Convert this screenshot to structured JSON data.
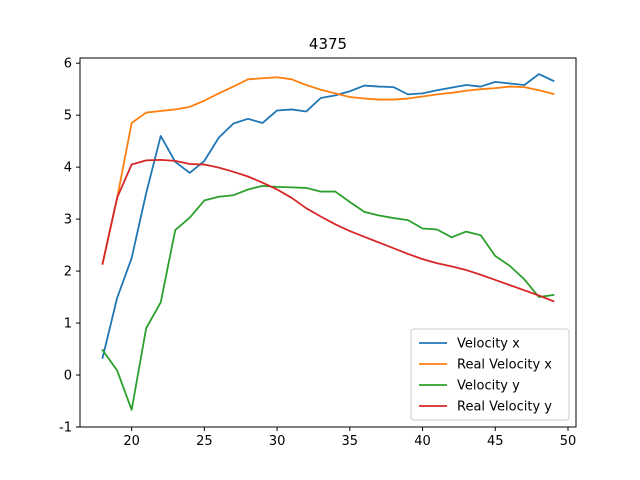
{
  "chart_data": {
    "type": "line",
    "title": "4375",
    "xlabel": "",
    "ylabel": "",
    "xlim": [
      16.45,
      50.55
    ],
    "ylim": [
      -1,
      6.1
    ],
    "xticks": [
      20,
      25,
      30,
      35,
      40,
      45,
      50
    ],
    "yticks": [
      -1,
      0,
      1,
      2,
      3,
      4,
      5,
      6
    ],
    "grid": false,
    "legend_position": "lower-right",
    "series": [
      {
        "name": "Velocity x",
        "color": "#1f77b4",
        "x": [
          18,
          19,
          20,
          21,
          22,
          23,
          24,
          25,
          26,
          27,
          28,
          29,
          30,
          31,
          32,
          33,
          34,
          35,
          36,
          37,
          38,
          39,
          40,
          41,
          42,
          43,
          44,
          45,
          46,
          47,
          48,
          49
        ],
        "y": [
          0.33,
          1.48,
          2.25,
          3.5,
          4.6,
          4.1,
          3.89,
          4.12,
          4.57,
          4.84,
          4.93,
          4.85,
          5.09,
          5.11,
          5.07,
          5.33,
          5.38,
          5.46,
          5.57,
          5.55,
          5.54,
          5.4,
          5.42,
          5.48,
          5.53,
          5.58,
          5.55,
          5.64,
          5.61,
          5.58,
          5.79,
          5.66
        ]
      },
      {
        "name": "Real Velocity x",
        "color": "#ff7f0e",
        "x": [
          18,
          19,
          20,
          21,
          22,
          23,
          24,
          25,
          26,
          27,
          28,
          29,
          30,
          31,
          32,
          33,
          34,
          35,
          36,
          37,
          38,
          39,
          40,
          41,
          42,
          43,
          44,
          45,
          46,
          47,
          48,
          49
        ],
        "y": [
          2.14,
          3.4,
          4.85,
          5.05,
          5.08,
          5.11,
          5.16,
          5.28,
          5.42,
          5.55,
          5.69,
          5.71,
          5.73,
          5.69,
          5.58,
          5.49,
          5.42,
          5.35,
          5.32,
          5.3,
          5.3,
          5.32,
          5.36,
          5.4,
          5.43,
          5.47,
          5.5,
          5.52,
          5.55,
          5.54,
          5.48,
          5.41
        ]
      },
      {
        "name": "Velocity y",
        "color": "#2ca02c",
        "x": [
          18,
          19,
          20,
          21,
          22,
          23,
          24,
          25,
          26,
          27,
          28,
          29,
          30,
          31,
          32,
          33,
          34,
          35,
          36,
          37,
          38,
          39,
          40,
          41,
          42,
          43,
          44,
          45,
          46,
          47,
          48,
          49
        ],
        "y": [
          0.48,
          0.09,
          -0.67,
          0.9,
          1.4,
          2.79,
          3.03,
          3.36,
          3.43,
          3.46,
          3.57,
          3.64,
          3.62,
          3.61,
          3.6,
          3.53,
          3.53,
          3.33,
          3.14,
          3.07,
          3.02,
          2.98,
          2.82,
          2.8,
          2.65,
          2.76,
          2.69,
          2.29,
          2.1,
          1.84,
          1.5,
          1.54
        ]
      },
      {
        "name": "Real Velocity y",
        "color": "#d62728",
        "x": [
          18,
          19,
          20,
          21,
          22,
          23,
          24,
          25,
          26,
          27,
          28,
          29,
          30,
          31,
          32,
          33,
          34,
          35,
          36,
          37,
          38,
          39,
          40,
          41,
          42,
          43,
          44,
          45,
          46,
          47,
          48,
          49
        ],
        "y": [
          2.14,
          3.41,
          4.05,
          4.13,
          4.14,
          4.12,
          4.06,
          4.05,
          3.99,
          3.91,
          3.82,
          3.7,
          3.57,
          3.41,
          3.21,
          3.05,
          2.9,
          2.77,
          2.66,
          2.55,
          2.44,
          2.33,
          2.23,
          2.15,
          2.09,
          2.02,
          1.93,
          1.83,
          1.73,
          1.63,
          1.53,
          1.42
        ]
      }
    ]
  }
}
